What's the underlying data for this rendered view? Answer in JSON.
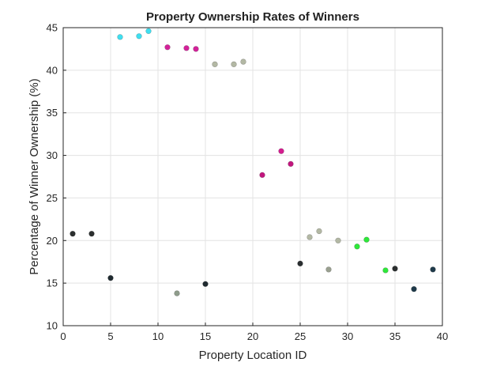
{
  "chart_data": {
    "type": "scatter",
    "title": "Property Ownership Rates of Winners",
    "xlabel": "Property Location ID",
    "ylabel": "Percentage of Winner Ownership (%)",
    "xlim": [
      0,
      40
    ],
    "ylim": [
      10,
      45
    ],
    "xticks": [
      0,
      5,
      10,
      15,
      20,
      25,
      30,
      35,
      40
    ],
    "yticks": [
      10,
      15,
      20,
      25,
      30,
      35,
      40,
      45
    ],
    "grid": true,
    "points": [
      {
        "x": 1,
        "y": 20.8,
        "color": "#2b2f2f"
      },
      {
        "x": 3,
        "y": 20.8,
        "color": "#2b2f2f"
      },
      {
        "x": 5,
        "y": 15.6,
        "color": "#1f2a30"
      },
      {
        "x": 6,
        "y": 43.9,
        "color": "#3fdff0"
      },
      {
        "x": 8,
        "y": 44.0,
        "color": "#3fdff0"
      },
      {
        "x": 9,
        "y": 44.6,
        "color": "#3fdff0"
      },
      {
        "x": 11,
        "y": 42.7,
        "color": "#d4229a"
      },
      {
        "x": 12,
        "y": 13.8,
        "color": "#8f9c8c"
      },
      {
        "x": 13,
        "y": 42.6,
        "color": "#d4229a"
      },
      {
        "x": 14,
        "y": 42.5,
        "color": "#d4229a"
      },
      {
        "x": 15,
        "y": 14.9,
        "color": "#1f2a30"
      },
      {
        "x": 16,
        "y": 40.7,
        "color": "#b3b8a4"
      },
      {
        "x": 18,
        "y": 40.7,
        "color": "#b3b8a4"
      },
      {
        "x": 19,
        "y": 41.0,
        "color": "#b3b8a4"
      },
      {
        "x": 21,
        "y": 27.7,
        "color": "#c2167e"
      },
      {
        "x": 23,
        "y": 30.5,
        "color": "#d41d8f"
      },
      {
        "x": 24,
        "y": 29.0,
        "color": "#c2167e"
      },
      {
        "x": 25,
        "y": 17.3,
        "color": "#2a2e30"
      },
      {
        "x": 26,
        "y": 20.4,
        "color": "#b3b8a4"
      },
      {
        "x": 27,
        "y": 21.1,
        "color": "#b3b8a4"
      },
      {
        "x": 28,
        "y": 16.6,
        "color": "#9aa090"
      },
      {
        "x": 29,
        "y": 20.0,
        "color": "#b3b8a4"
      },
      {
        "x": 31,
        "y": 19.3,
        "color": "#2ee83a"
      },
      {
        "x": 32,
        "y": 20.1,
        "color": "#2ee83a"
      },
      {
        "x": 34,
        "y": 16.5,
        "color": "#2ee83a"
      },
      {
        "x": 35,
        "y": 16.7,
        "color": "#2b2f2f"
      },
      {
        "x": 37,
        "y": 14.3,
        "color": "#1f3a4a"
      },
      {
        "x": 39,
        "y": 16.6,
        "color": "#1f3a4a"
      }
    ]
  }
}
